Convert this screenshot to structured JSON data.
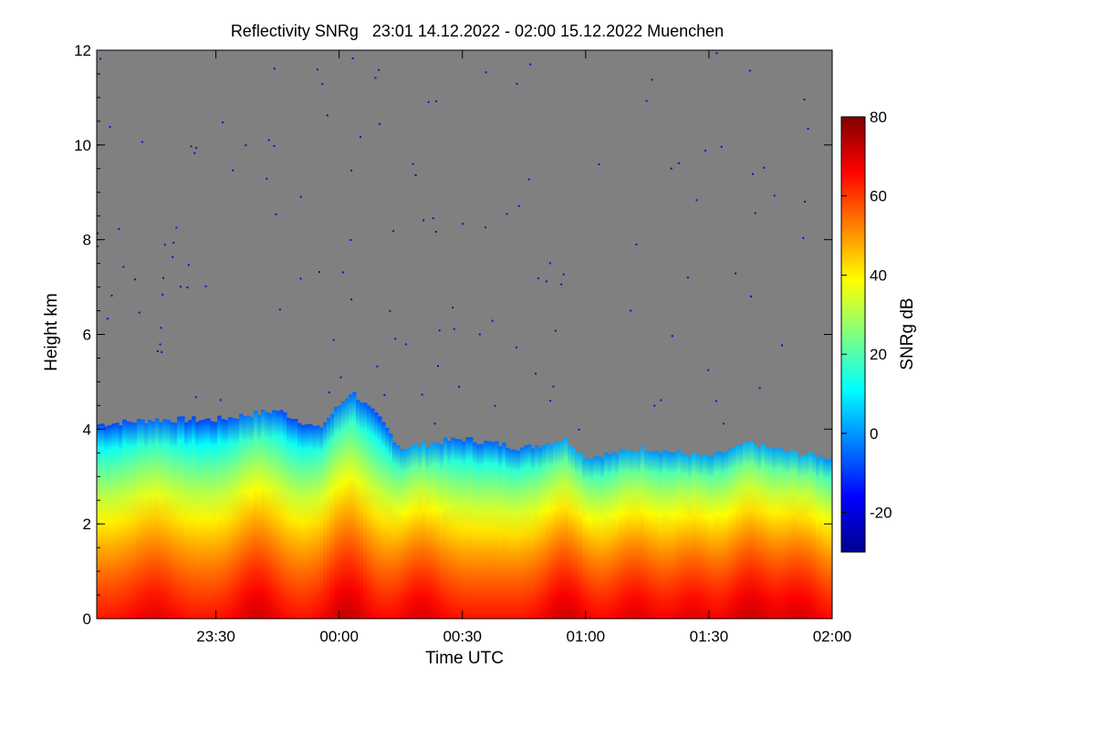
{
  "chart_data": {
    "type": "heatmap",
    "title": "Reflectivity SNRg   23:01 14.12.2022 - 02:00 15.12.2022 Muenchen",
    "xlabel": "Time UTC",
    "ylabel": "Height km",
    "xlim": [
      "23:01",
      "02:00"
    ],
    "ylim": [
      0,
      12
    ],
    "x_ticks": [
      "23:30",
      "00:00",
      "00:30",
      "01:00",
      "01:30",
      "02:00"
    ],
    "y_ticks": [
      "0",
      "2",
      "4",
      "6",
      "8",
      "10",
      "12"
    ],
    "background": "#808080",
    "colorbar": {
      "label": "SNRg dB",
      "range": [
        -30,
        80
      ],
      "ticks": [
        "-20",
        "0",
        "20",
        "40",
        "60",
        "80"
      ],
      "colormap": [
        "#00008f",
        "#0000ff",
        "#0080ff",
        "#00ffff",
        "#80ff80",
        "#ffff00",
        "#ff8000",
        "#ff0000",
        "#800000"
      ]
    },
    "echo_top_km": [
      {
        "time": "23:01",
        "top": 4.1
      },
      {
        "time": "23:15",
        "top": 4.2
      },
      {
        "time": "23:30",
        "top": 4.2
      },
      {
        "time": "23:45",
        "top": 4.4
      },
      {
        "time": "23:55",
        "top": 4.0
      },
      {
        "time": "00:03",
        "top": 4.8
      },
      {
        "time": "00:10",
        "top": 4.2
      },
      {
        "time": "00:15",
        "top": 3.6
      },
      {
        "time": "00:30",
        "top": 3.8
      },
      {
        "time": "00:45",
        "top": 3.6
      },
      {
        "time": "00:55",
        "top": 3.8
      },
      {
        "time": "01:00",
        "top": 3.4
      },
      {
        "time": "01:15",
        "top": 3.6
      },
      {
        "time": "01:30",
        "top": 3.4
      },
      {
        "time": "01:40",
        "top": 3.7
      },
      {
        "time": "01:50",
        "top": 3.5
      },
      {
        "time": "02:00",
        "top": 3.4
      }
    ],
    "fall_streaks": [
      {
        "time": "23:15",
        "strength": 0.55
      },
      {
        "time": "23:40",
        "strength": 0.85
      },
      {
        "time": "00:02",
        "strength": 1.0
      },
      {
        "time": "00:20",
        "strength": 0.7
      },
      {
        "time": "00:55",
        "strength": 0.85
      },
      {
        "time": "01:12",
        "strength": 0.65
      },
      {
        "time": "01:26",
        "strength": 0.6
      },
      {
        "time": "01:40",
        "strength": 0.9
      },
      {
        "time": "01:52",
        "strength": 0.75
      }
    ]
  }
}
